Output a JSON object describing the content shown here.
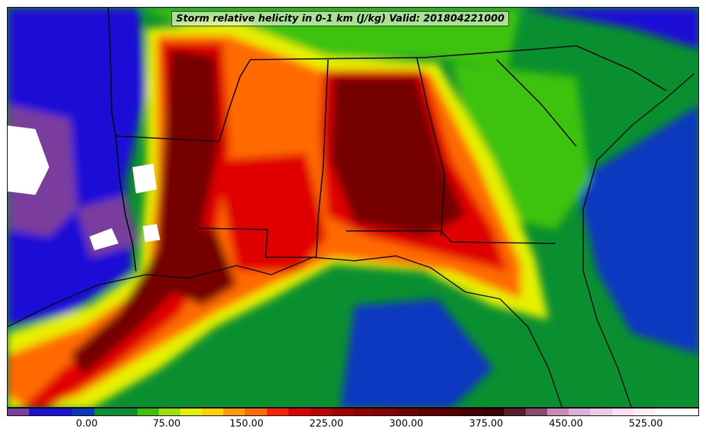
{
  "title": "Storm relative helicity in 0-1 km (J/kg) Valid: 201804221000",
  "colorbar": {
    "colors": [
      "#7a3e9d",
      "#1a10d6",
      "#1a10d6",
      "#0a38c0",
      "#0a8f30",
      "#0a8f30",
      "#3cc20a",
      "#9ee000",
      "#e6f000",
      "#ffd000",
      "#ff9a00",
      "#ff6a00",
      "#ff2000",
      "#e00000",
      "#c40000",
      "#a80000",
      "#960000",
      "#880000",
      "#760000",
      "#640000",
      "#560000",
      "#4a0000",
      "#3e0000",
      "#5a1e2a",
      "#8a4a6a",
      "#c48ab8",
      "#dcb0d8",
      "#eccae8",
      "#f6e0f2",
      "#fbeefa",
      "#ffffff",
      "#ffffff"
    ],
    "tick_labels": [
      "0.00",
      "75.00",
      "150.00",
      "225.00",
      "300.00",
      "375.00",
      "450.00",
      "525.00"
    ],
    "tick_values": [
      0,
      75,
      150,
      225,
      300,
      375,
      450,
      525
    ],
    "min": -75,
    "max": 575
  }
}
